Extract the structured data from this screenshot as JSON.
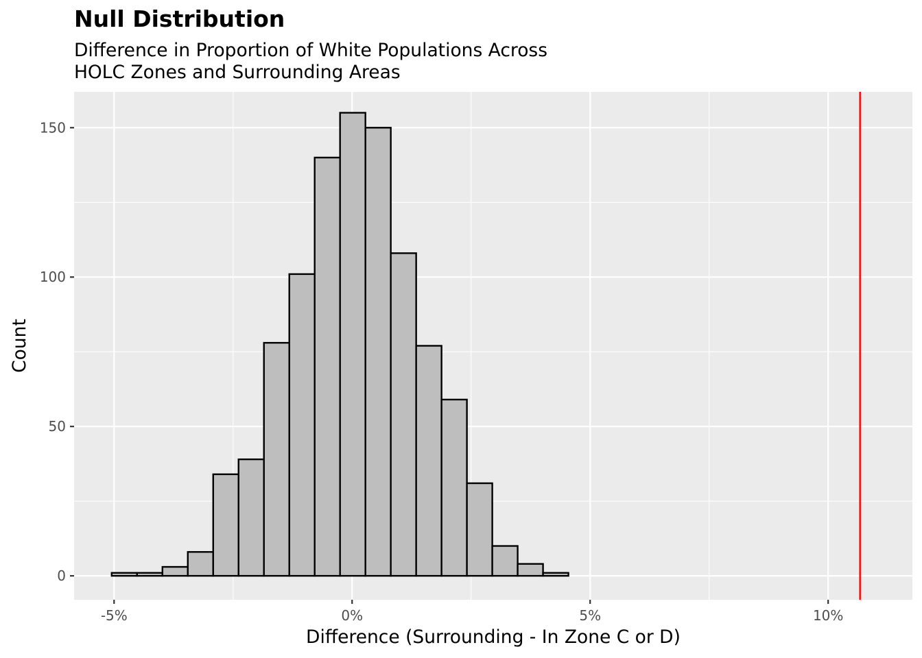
{
  "chart_data": {
    "type": "bar",
    "title": "Null Distribution",
    "subtitle_lines": [
      "Difference in Proportion of White Populations Across",
      "HOLC Zones and Surrounding Areas"
    ],
    "xlabel": "Difference (Surrounding - In Zone C or D)",
    "ylabel": "Count",
    "xlim": [
      -0.0584,
      0.1177
    ],
    "ylim": [
      -8,
      162
    ],
    "x_ticks": [
      -0.05,
      0.0,
      0.05,
      0.1
    ],
    "x_tick_labels": [
      "-5%",
      "0%",
      "5%",
      "10%"
    ],
    "y_ticks": [
      0,
      50,
      100,
      150
    ],
    "y_tick_labels": [
      "0",
      "50",
      "100",
      "150"
    ],
    "bin_width": 0.00533,
    "bin_start": -0.0505,
    "counts": [
      1,
      1,
      3,
      8,
      34,
      39,
      78,
      101,
      140,
      155,
      150,
      108,
      77,
      59,
      31,
      10,
      4,
      1,
      0,
      0,
      0,
      0,
      0,
      0,
      0,
      0,
      0,
      0,
      0,
      0,
      0,
      0
    ],
    "observed_line": {
      "x": 0.1067,
      "color": "#ff0000"
    },
    "bar_fill": "#bebebe",
    "bar_stroke": "#000000",
    "panel_background": "#ebebeb",
    "grid": true
  }
}
